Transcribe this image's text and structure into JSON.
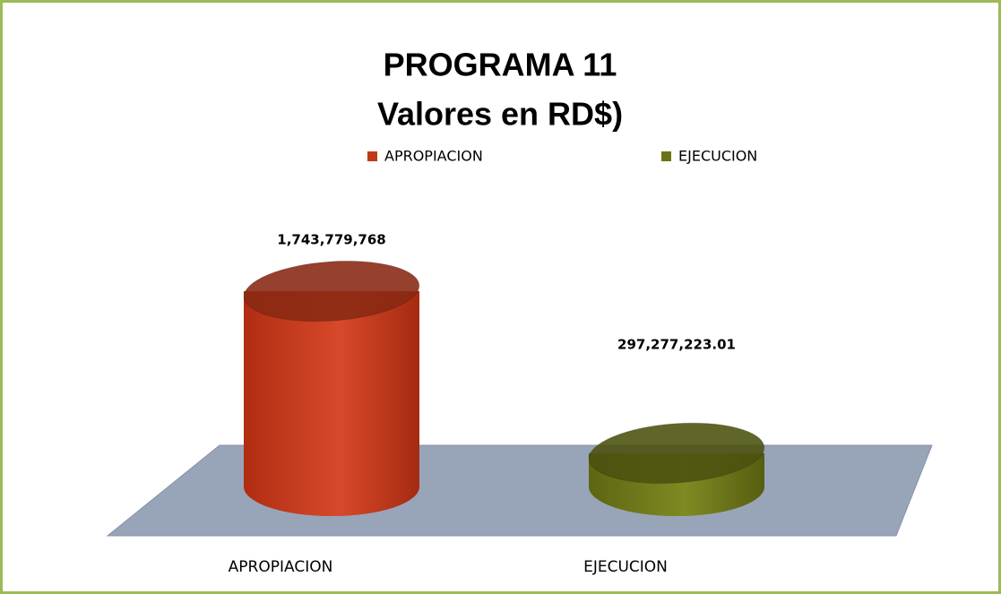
{
  "chart_data": {
    "type": "bar3d_cylinder",
    "title": "PROGRAMA 11",
    "subtitle": "Valores en RD$)",
    "categories": [
      "APROPIACION",
      "EJECUCION"
    ],
    "series": [
      {
        "name": "APROPIACION",
        "color": "#c0391b",
        "values": [
          1743779768,
          null
        ],
        "value_labels": [
          "1,743,779,768",
          null
        ]
      },
      {
        "name": "EJECUCION",
        "color": "#6b7216",
        "values": [
          null,
          297277223.01
        ],
        "value_labels": [
          null,
          "297,277,223.01"
        ]
      }
    ],
    "legend": "top"
  }
}
